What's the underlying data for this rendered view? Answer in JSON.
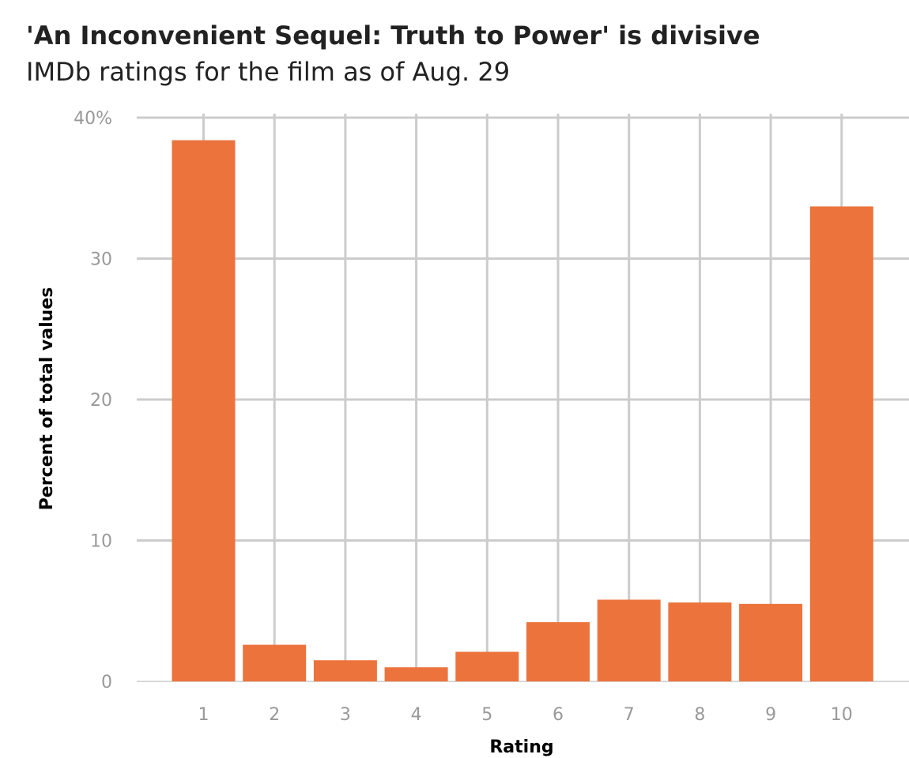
{
  "chart_data": {
    "type": "bar",
    "title": "'An Inconvenient Sequel: Truth to Power' is divisive",
    "subtitle": "IMDb ratings for the film as of Aug. 29",
    "xlabel": "Rating",
    "ylabel": "Percent of total values",
    "categories": [
      "1",
      "2",
      "3",
      "4",
      "5",
      "6",
      "7",
      "8",
      "9",
      "10"
    ],
    "values": [
      38.4,
      2.6,
      1.5,
      1.0,
      2.1,
      4.2,
      5.8,
      5.6,
      5.5,
      33.7
    ],
    "ylim": [
      0,
      40
    ],
    "yticks": [
      0,
      10,
      20,
      30,
      40
    ],
    "ytick_labels": [
      "0",
      "10",
      "20",
      "30",
      "40%"
    ],
    "grid": true,
    "colors": {
      "bar": "#ec733c",
      "grid": "#cccccc",
      "tick_text": "#999999"
    }
  }
}
